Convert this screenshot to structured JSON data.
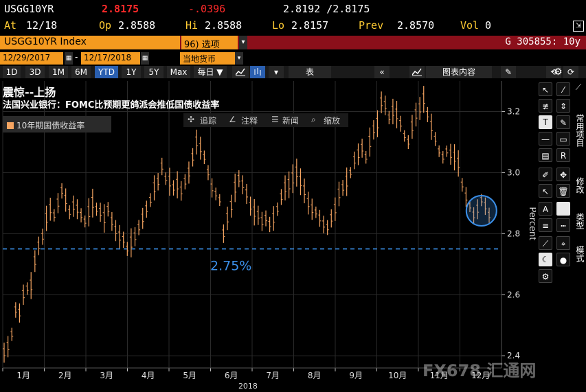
{
  "quote": {
    "ticker": "USGG10YR",
    "last": "2.8175",
    "change": "-.0396",
    "bid_ask": "2.8192 /2.8175",
    "at_label": "At",
    "at_date": "12/18",
    "op_label": "Op",
    "open": "2.8588",
    "hi_label": "Hi",
    "high": "2.8588",
    "lo_label": "Lo",
    "low": "2.8157",
    "prev_label": "Prev",
    "prev": "2.8570",
    "vol_label": "Vol",
    "volume": "0"
  },
  "indexbar": {
    "security": "USGG10YR Index",
    "options_num": "96)",
    "options_label": "选项",
    "dropdown_glyph": "▾",
    "code": "G 305855: 10y"
  },
  "datebar": {
    "start": "12/29/2017",
    "dash": "-",
    "end": "12/17/2018",
    "currency": "当地货币"
  },
  "toolbar": {
    "ranges": [
      "1D",
      "3D",
      "1M",
      "6M",
      "YTD",
      "1Y",
      "5Y",
      "Max"
    ],
    "selected_range": "YTD",
    "period": "每日 ▼",
    "table_label": "表",
    "back_glyph": "«",
    "chart_content": "图表内容",
    "undo": "⟲",
    "redo": "⟳",
    "settings": "⚙"
  },
  "chart": {
    "title": "震惊--上扬",
    "subtitle": "法国兴业银行：FOMC比预期更鸽派会推低国债收益率",
    "legend": "10年期国债收益率",
    "menu": [
      "追踪",
      "注释",
      "新闻",
      "缩放"
    ],
    "annotation": "2.75%",
    "watermark": "FX678 汇通网",
    "colors": {
      "series": "#f6a561",
      "line": "#3b8fe8",
      "circle": "#3b8fe8"
    }
  },
  "chart_data": {
    "type": "line",
    "ylabel": "Percent",
    "ylim": [
      2.36,
      3.3
    ],
    "yticks": [
      2.4,
      2.6,
      2.8,
      3.0,
      3.2
    ],
    "months": [
      "1月",
      "2月",
      "3月",
      "4月",
      "5月",
      "6月",
      "7月",
      "8月",
      "9月",
      "10月",
      "11月",
      "12月"
    ],
    "year": "2018",
    "hline": 2.75,
    "series": [
      {
        "values": [
          2.41,
          2.43,
          2.47,
          2.55,
          2.54,
          2.6,
          2.62,
          2.63,
          2.71,
          2.76,
          2.79,
          2.85,
          2.88,
          2.86,
          2.9,
          2.94,
          2.91,
          2.87,
          2.89,
          2.88,
          2.86,
          2.84,
          2.87,
          2.9,
          2.88,
          2.87,
          2.85,
          2.88,
          2.84,
          2.81,
          2.79,
          2.78,
          2.75,
          2.77,
          2.79,
          2.82,
          2.85,
          2.88,
          2.91,
          2.95,
          2.97,
          3.02,
          2.98,
          2.97,
          2.95,
          2.96,
          2.94,
          2.97,
          3.0,
          3.05,
          3.1,
          3.08,
          3.05,
          3.0,
          2.95,
          2.93,
          2.91,
          2.8,
          2.85,
          2.89,
          2.95,
          2.98,
          2.96,
          2.93,
          2.89,
          2.87,
          2.86,
          2.84,
          2.85,
          2.83,
          2.85,
          2.88,
          2.92,
          2.95,
          2.96,
          2.98,
          3.0,
          2.97,
          2.94,
          2.9,
          2.88,
          2.87,
          2.85,
          2.83,
          2.82,
          2.85,
          2.88,
          2.93,
          2.95,
          2.97,
          3.0,
          3.04,
          3.06,
          3.08,
          3.05,
          3.1,
          3.14,
          3.16,
          3.23,
          3.22,
          3.18,
          3.2,
          3.19,
          3.16,
          3.12,
          3.1,
          3.15,
          3.19,
          3.21,
          3.24,
          3.19,
          3.15,
          3.11,
          3.07,
          3.05,
          3.07,
          3.06,
          3.05,
          3.03,
          2.96,
          2.92,
          2.89,
          2.86,
          2.88,
          2.91,
          2.89,
          2.86
        ]
      }
    ]
  },
  "toolbox": {
    "vtabs": [
      "常用项目",
      "修改",
      "类型",
      "模式"
    ]
  }
}
